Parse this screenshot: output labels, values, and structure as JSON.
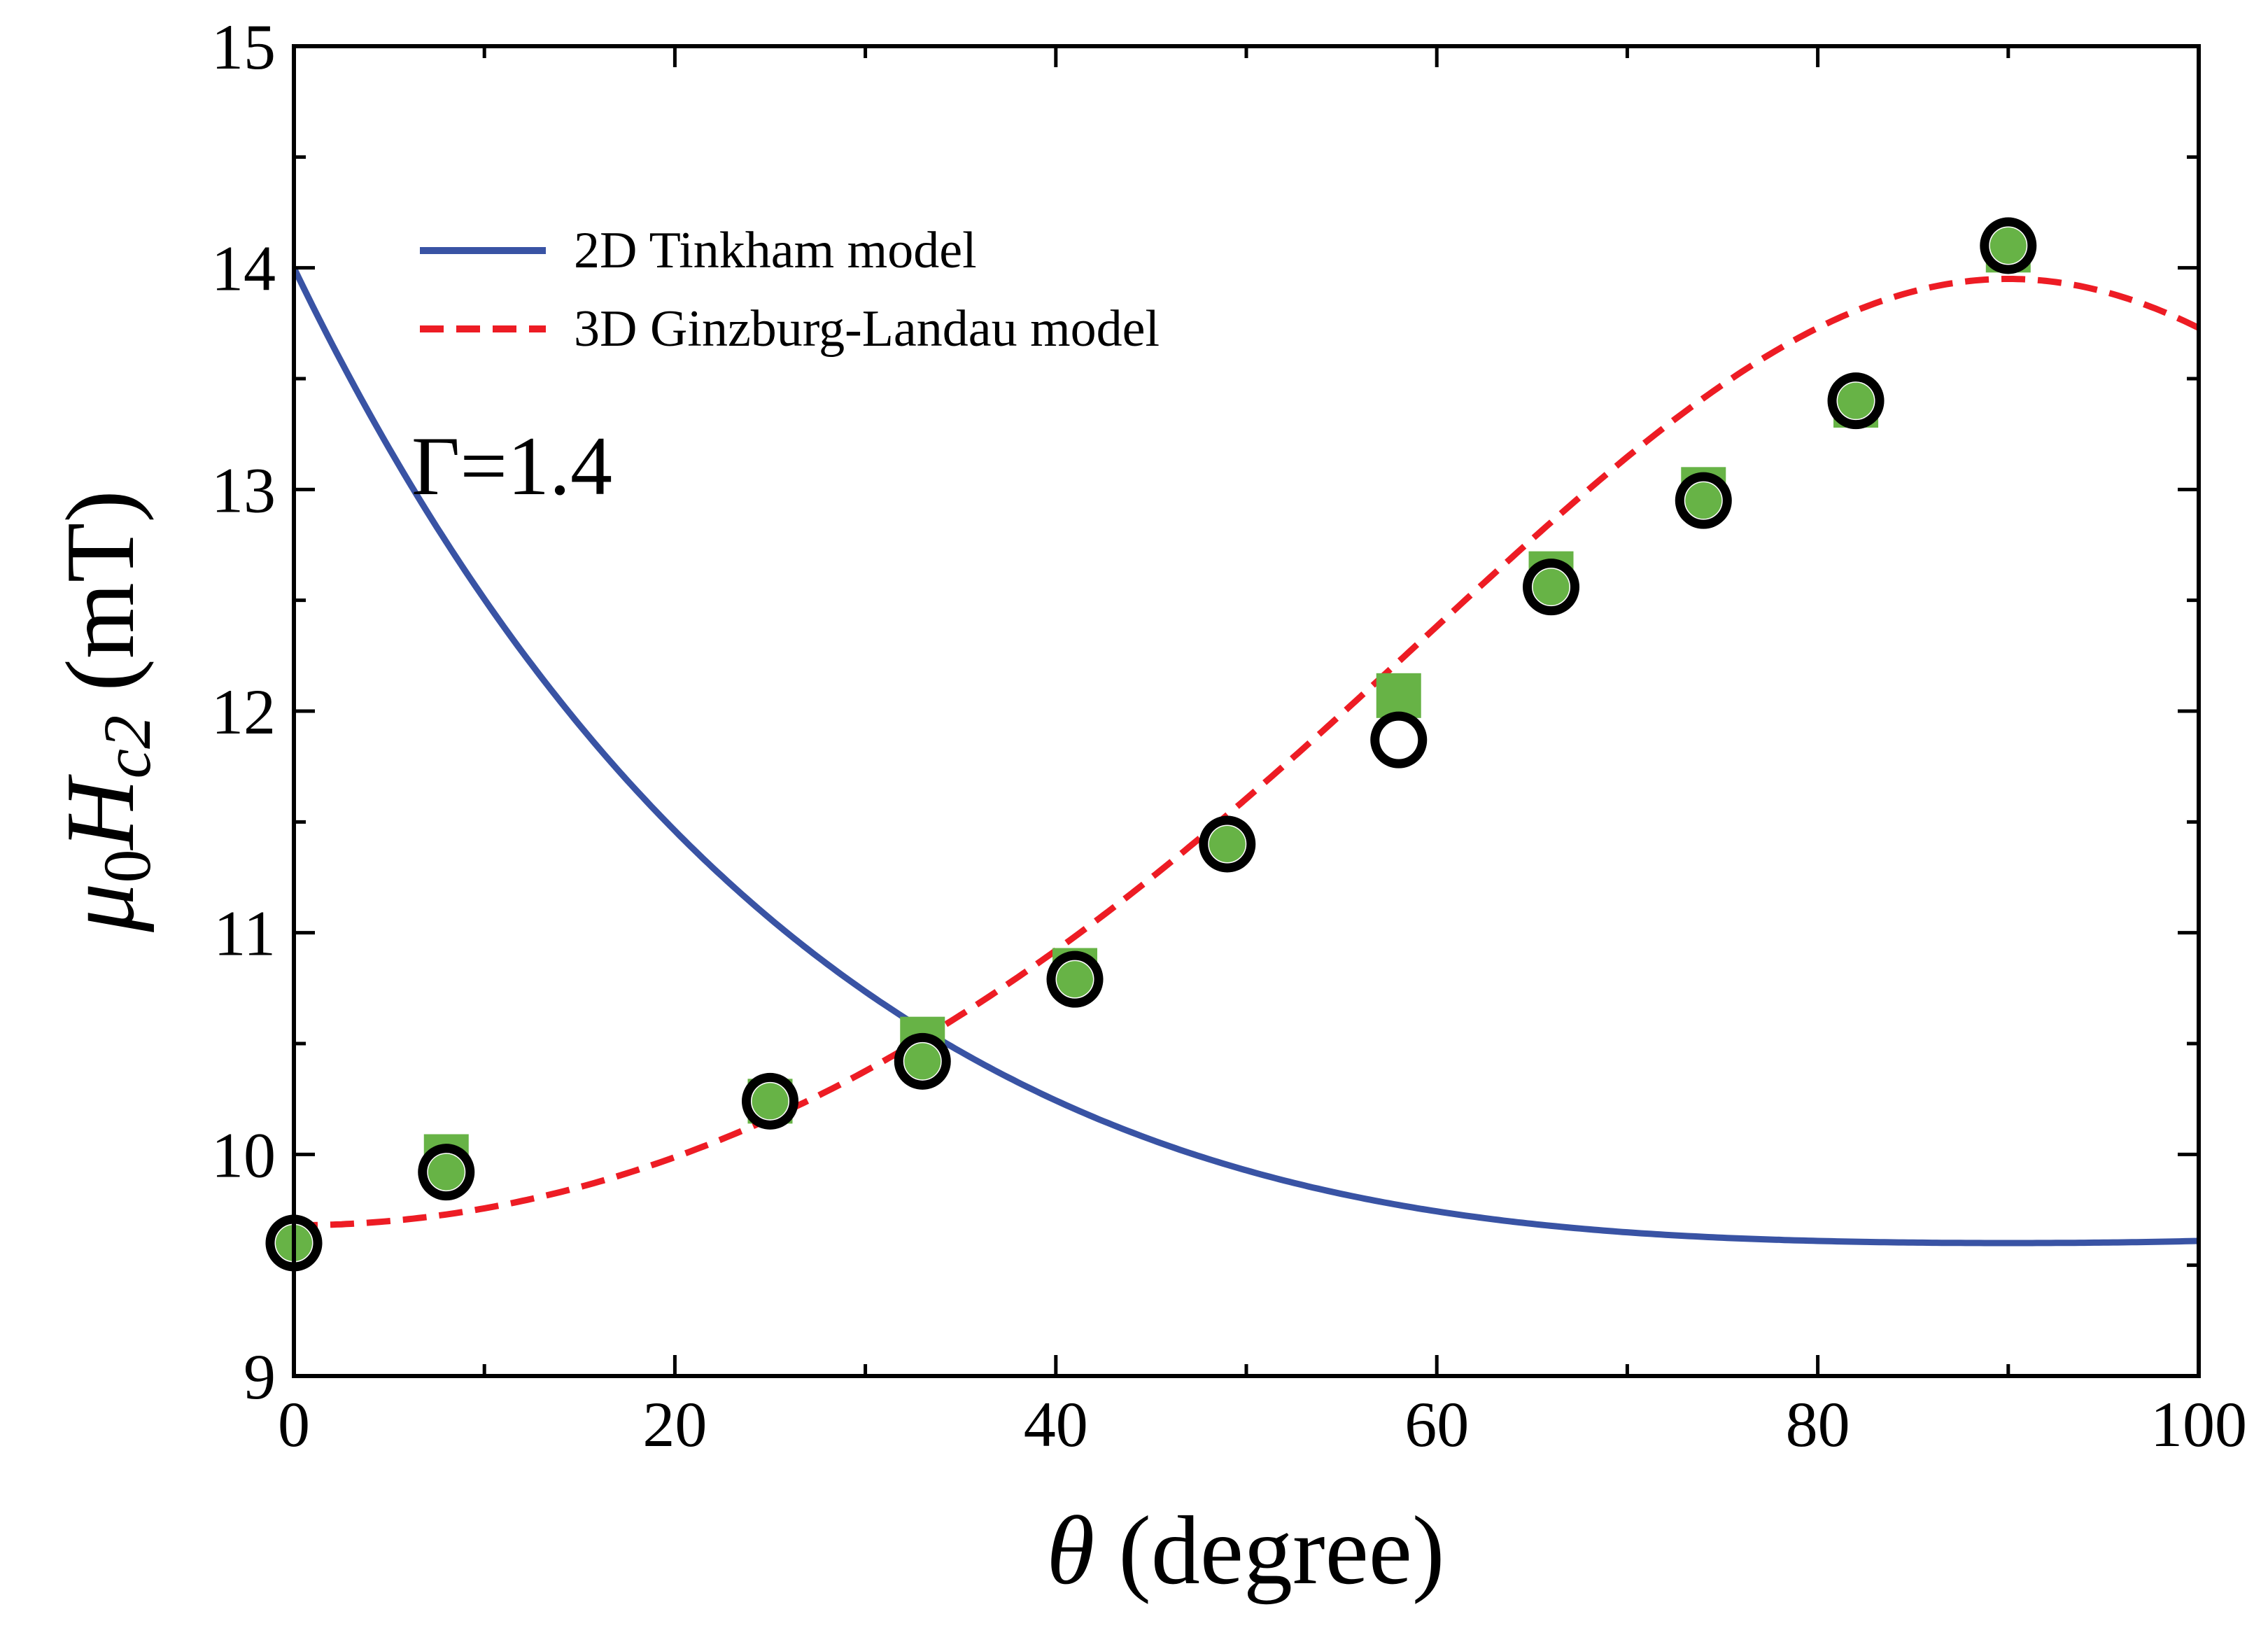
{
  "chart_data": {
    "type": "scatter",
    "xlabel": {
      "symbol": "θ",
      "text": "(degree)"
    },
    "ylabel": {
      "mu": "μ",
      "mu_sub": "0",
      "H": "H",
      "H_sub": "c2",
      "unit": "(mT)"
    },
    "xlim": [
      0,
      100
    ],
    "ylim": [
      9,
      15
    ],
    "xticks": [
      0,
      20,
      40,
      60,
      80,
      100
    ],
    "xminor": [
      10,
      30,
      50,
      70,
      90
    ],
    "yticks": [
      9,
      10,
      11,
      12,
      13,
      14,
      15
    ],
    "yminor": [
      9.5,
      10.5,
      11.5,
      12.5,
      13.5,
      14.5
    ],
    "annotation": "Γ=1.4",
    "legend_position": "top-left",
    "series": [
      {
        "name": "2D Tinkham model",
        "kind": "line",
        "style": "solid",
        "color": "#3953a4",
        "model": "tinkham",
        "params": {
          "Hperp": 9.6,
          "Hpar": 14.0
        },
        "x_range": [
          0,
          100
        ]
      },
      {
        "name": "3D Ginzburg-Landau model",
        "kind": "line",
        "style": "dashed",
        "color": "#ed1c24",
        "model": "ginzburg-landau",
        "params": {
          "Hperp": 9.68,
          "Hpar": 13.95,
          "theta_par": 90
        },
        "x_range": [
          0,
          100
        ]
      },
      {
        "kind": "marker",
        "marker": "square",
        "color": "#67b346",
        "x": [
          8,
          25,
          33,
          41,
          58,
          66,
          74,
          82,
          90
        ],
        "y": [
          9.99,
          10.24,
          10.52,
          10.83,
          12.07,
          12.62,
          13.0,
          13.38,
          14.08
        ]
      },
      {
        "kind": "marker",
        "marker": "open-circle",
        "color": "#000000",
        "x": [
          0,
          8,
          25,
          33,
          41,
          49,
          58,
          66,
          74,
          82,
          90
        ],
        "y": [
          9.6,
          9.92,
          10.24,
          10.42,
          10.79,
          11.4,
          11.87,
          12.56,
          12.95,
          13.4,
          14.1
        ]
      },
      {
        "kind": "marker",
        "marker": "filled-circle",
        "color": "#67b346",
        "x": [
          0,
          8,
          25,
          33,
          41,
          49,
          58,
          66,
          74,
          82,
          90
        ],
        "y": [
          9.6,
          9.92,
          10.24,
          10.42,
          10.79,
          11.4,
          11.87,
          12.56,
          12.95,
          13.4,
          14.1
        ]
      }
    ]
  }
}
